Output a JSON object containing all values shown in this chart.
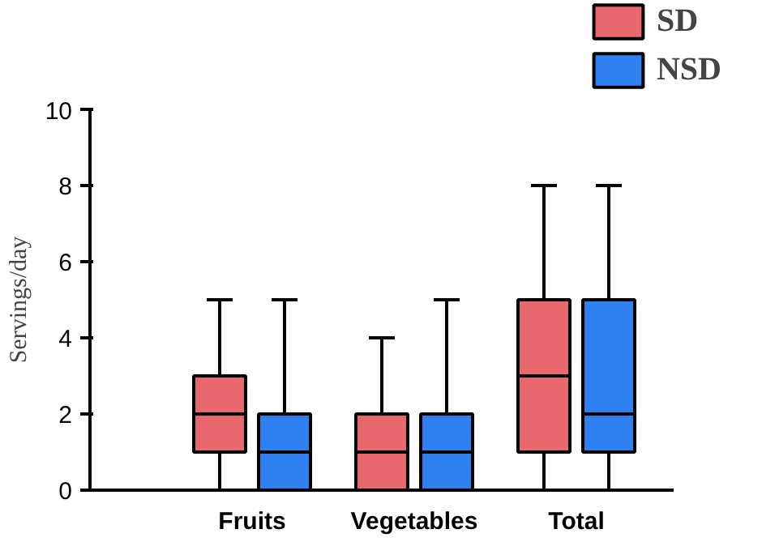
{
  "chart_data": {
    "type": "box",
    "ylabel": "Servings/day",
    "categories": [
      "Fruits",
      "Vegetables",
      "Total"
    ],
    "ylim": [
      0,
      10
    ],
    "yticks": [
      0,
      2,
      4,
      6,
      8,
      10
    ],
    "grid": false,
    "legend": "top right",
    "series": [
      {
        "name": "SD",
        "color": "#e8686e",
        "boxes": [
          {
            "low": 0,
            "q1": 1,
            "median": 2,
            "q3": 3,
            "high": 5
          },
          {
            "low": 0,
            "q1": 0,
            "median": 1,
            "q3": 2,
            "high": 4
          },
          {
            "low": 0,
            "q1": 1,
            "median": 3,
            "q3": 5,
            "high": 8
          }
        ]
      },
      {
        "name": "NSD",
        "color": "#2f80f0",
        "boxes": [
          {
            "low": 0,
            "q1": 0,
            "median": 1,
            "q3": 2,
            "high": 5
          },
          {
            "low": 0,
            "q1": 0,
            "median": 1,
            "q3": 2,
            "high": 5
          },
          {
            "low": 0,
            "q1": 1,
            "median": 2,
            "q3": 5,
            "high": 8
          }
        ]
      }
    ]
  }
}
